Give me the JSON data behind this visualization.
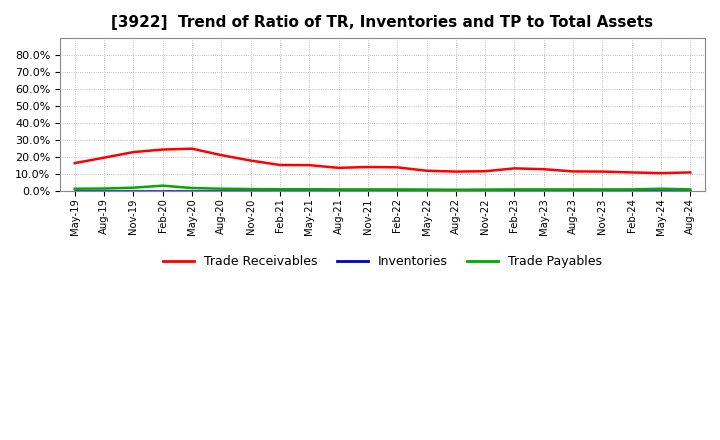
{
  "title": "[3922]  Trend of Ratio of TR, Inventories and TP to Total Assets",
  "x_labels": [
    "May-19",
    "Aug-19",
    "Nov-19",
    "Feb-20",
    "May-20",
    "Aug-20",
    "Nov-20",
    "Feb-21",
    "May-21",
    "Aug-21",
    "Nov-21",
    "Feb-22",
    "May-22",
    "Aug-22",
    "Nov-22",
    "Feb-23",
    "May-23",
    "Aug-23",
    "Nov-23",
    "Feb-24",
    "May-24",
    "Aug-24"
  ],
  "trade_receivables": [
    0.163,
    0.195,
    0.228,
    0.243,
    0.248,
    0.21,
    0.178,
    0.152,
    0.151,
    0.135,
    0.14,
    0.138,
    0.118,
    0.113,
    0.115,
    0.132,
    0.127,
    0.114,
    0.113,
    0.108,
    0.104,
    0.108
  ],
  "inventories": [
    0.0,
    0.0,
    0.0,
    0.0,
    0.0,
    0.0,
    0.0,
    0.0,
    0.0,
    0.0,
    0.0,
    0.0,
    0.0,
    0.0,
    0.0,
    0.0,
    0.0,
    0.0,
    0.0,
    0.0,
    0.0,
    0.0
  ],
  "trade_payables": [
    0.012,
    0.013,
    0.018,
    0.03,
    0.016,
    0.012,
    0.01,
    0.009,
    0.009,
    0.008,
    0.008,
    0.008,
    0.007,
    0.006,
    0.007,
    0.008,
    0.008,
    0.008,
    0.008,
    0.008,
    0.012,
    0.008
  ],
  "tr_color": "#FF0000",
  "inv_color": "#0000CC",
  "tp_color": "#00AA00",
  "ylim": [
    0.0,
    0.9
  ],
  "yticks": [
    0.0,
    0.1,
    0.2,
    0.3,
    0.4,
    0.5,
    0.6,
    0.7,
    0.8
  ],
  "background_color": "#FFFFFF",
  "plot_bg_color": "#FFFFFF",
  "grid_color": "#AAAAAA",
  "title_fontsize": 11,
  "legend_labels": [
    "Trade Receivables",
    "Inventories",
    "Trade Payables"
  ]
}
